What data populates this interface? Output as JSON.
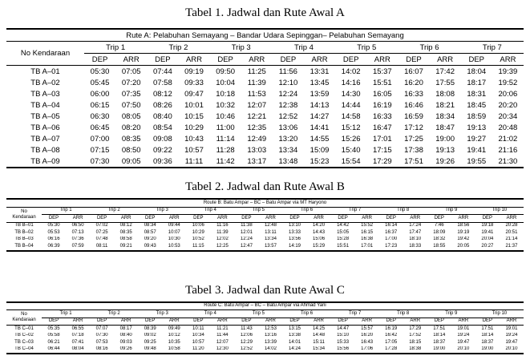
{
  "page": {
    "background_color": "#ffffff",
    "text_color": "#000000",
    "rule_color": "#000000"
  },
  "tables": [
    {
      "title": "Tabel 1. Jadwal dan Rute Awal A",
      "route_header": "Rute A: Pelabuhan Semayang – Bandar Udara Sepinggan– Pelabuhan Semayang",
      "vehicle_header_lines": [
        "No Kendaraan"
      ],
      "trips": [
        "Trip 1",
        "Trip 2",
        "Trip 3",
        "Trip 4",
        "Trip 5",
        "Trip 6",
        "Trip 7"
      ],
      "sub_headers": [
        "DEP",
        "ARR"
      ],
      "rows": [
        {
          "vehicle": "TB A–01",
          "times": [
            "05:30",
            "07:05",
            "07:44",
            "09:19",
            "09:50",
            "11:25",
            "11:56",
            "13:31",
            "14:02",
            "15:37",
            "16:07",
            "17:42",
            "18:04",
            "19:39"
          ]
        },
        {
          "vehicle": "TB A–02",
          "times": [
            "05:45",
            "07:20",
            "07:58",
            "09:33",
            "10:04",
            "11:39",
            "12:10",
            "13:45",
            "14:16",
            "15:51",
            "16:20",
            "17:55",
            "18:17",
            "19:52"
          ]
        },
        {
          "vehicle": "TB A–03",
          "times": [
            "06:00",
            "07:35",
            "08:12",
            "09:47",
            "10:18",
            "11:53",
            "12:24",
            "13:59",
            "14:30",
            "16:05",
            "16:33",
            "18:08",
            "18:31",
            "20:06"
          ]
        },
        {
          "vehicle": "TB A–04",
          "times": [
            "06:15",
            "07:50",
            "08:26",
            "10:01",
            "10:32",
            "12:07",
            "12:38",
            "14:13",
            "14:44",
            "16:19",
            "16:46",
            "18:21",
            "18:45",
            "20:20"
          ]
        },
        {
          "vehicle": "TB A–05",
          "times": [
            "06:30",
            "08:05",
            "08:40",
            "10:15",
            "10:46",
            "12:21",
            "12:52",
            "14:27",
            "14:58",
            "16:33",
            "16:59",
            "18:34",
            "18:59",
            "20:34"
          ]
        },
        {
          "vehicle": "TB A–06",
          "times": [
            "06:45",
            "08:20",
            "08:54",
            "10:29",
            "11:00",
            "12:35",
            "13:06",
            "14:41",
            "15:12",
            "16:47",
            "17:12",
            "18:47",
            "19:13",
            "20:48"
          ]
        },
        {
          "vehicle": "TB A–07",
          "times": [
            "07:00",
            "08:35",
            "09:08",
            "10:43",
            "11:14",
            "12:49",
            "13:20",
            "14:55",
            "15:26",
            "17:01",
            "17:25",
            "19:00",
            "19:27",
            "21:02"
          ]
        },
        {
          "vehicle": "TB A–08",
          "times": [
            "07:15",
            "08:50",
            "09:22",
            "10:57",
            "11:28",
            "13:03",
            "13:34",
            "15:09",
            "15:40",
            "17:15",
            "17:38",
            "19:13",
            "19:41",
            "21:16"
          ]
        },
        {
          "vehicle": "TB A–09",
          "times": [
            "07:30",
            "09:05",
            "09:36",
            "11:11",
            "11:42",
            "13:17",
            "13:48",
            "15:23",
            "15:54",
            "17:29",
            "17:51",
            "19:26",
            "19:55",
            "21:30"
          ]
        }
      ]
    },
    {
      "title": "Tabel 2. Jadwal dan Rute Awal B",
      "route_header": "Route B: Batu Ampar – BC – Batu Ampar via MT Haryono",
      "vehicle_header_lines": [
        "No",
        "Kendaraan"
      ],
      "trips": [
        "Trip 1",
        "Trip 2",
        "Trip 3",
        "Trip 4",
        "Trip 5",
        "Trip 6",
        "Trip 7",
        "Trip 8",
        "Trip 9",
        "Trip 10"
      ],
      "sub_headers": [
        "DEP",
        "ARR"
      ],
      "rows": [
        {
          "vehicle": "TB B–01",
          "times": [
            "05:30",
            "06:50",
            "07:02",
            "08:12",
            "08:34",
            "09:44",
            "10:06",
            "11:16",
            "11:38",
            "12:48",
            "13:10",
            "14:20",
            "14:42",
            "15:52",
            "16:14",
            "17:24",
            "7:46",
            "18:56",
            "19:18",
            "20:28"
          ]
        },
        {
          "vehicle": "TB B–02",
          "times": [
            "05:53",
            "07:13",
            "07:25",
            "08:35",
            "08:57",
            "10:07",
            "10:29",
            "11:39",
            "12:01",
            "13:11",
            "13:33",
            "14:43",
            "15:05",
            "16:15",
            "16:37",
            "17:47",
            "18:09",
            "19:19",
            "19:41",
            "20:51"
          ]
        },
        {
          "vehicle": "TB B–03",
          "times": [
            "06:16",
            "07:36",
            "07:48",
            "08:58",
            "09:20",
            "10:30",
            "10:52",
            "12:02",
            "12:24",
            "13:34",
            "13:56",
            "15:06",
            "15:28",
            "16:38",
            "17:00",
            "18:10",
            "18:32",
            "19:42",
            "20:04",
            "21:14"
          ]
        },
        {
          "vehicle": "TB B–04",
          "times": [
            "06:39",
            "07:59",
            "08:11",
            "09:21",
            "09:43",
            "10:53",
            "11:15",
            "12:25",
            "12:47",
            "13:57",
            "14:19",
            "15:29",
            "15:51",
            "17:01",
            "17:23",
            "18:33",
            "18:55",
            "20:05",
            "20:27",
            "21:37"
          ]
        }
      ]
    },
    {
      "title": "Tabel 3. Jadwal dan Rute Awal C",
      "route_header": "Route C: Batu Ampar – BC – Batu Ampar via Ahmad Yani",
      "vehicle_header_lines": [
        "No",
        "Kendaraan"
      ],
      "trips": [
        "Trip 1",
        "Trip 2",
        "Trip 3",
        "Trip 4",
        "Trip 5",
        "Trip 6",
        "Trip 7",
        "Trip 8",
        "Trip 9",
        "Trip 10"
      ],
      "sub_headers": [
        "DEP",
        "ARR"
      ],
      "rows": [
        {
          "vehicle": "TB C–01",
          "times": [
            "05:35",
            "06:55",
            "07:07",
            "08:17",
            "08:39",
            "09:49",
            "10:11",
            "11:21",
            "11:43",
            "12:53",
            "13:15",
            "14:25",
            "14:47",
            "15:57",
            "16:19",
            "17:29",
            "17:51",
            "19:01",
            "17:51",
            "19:01"
          ]
        },
        {
          "vehicle": "TB C–02",
          "times": [
            "05:58",
            "07:18",
            "07:30",
            "08:40",
            "09:02",
            "10:12",
            "10:34",
            "11:44",
            "12:06",
            "13:16",
            "13:38",
            "14:48",
            "15:10",
            "16:20",
            "16:42",
            "17:52",
            "18:14",
            "19:24",
            "18:14",
            "19:24"
          ]
        },
        {
          "vehicle": "TB C–03",
          "times": [
            "06:21",
            "07:41",
            "07:53",
            "09:03",
            "09:25",
            "10:35",
            "10:57",
            "12:07",
            "12:29",
            "13:39",
            "14:01",
            "15:11",
            "15:33",
            "16:43",
            "17:05",
            "18:15",
            "18:37",
            "19:47",
            "18:37",
            "19:47"
          ]
        },
        {
          "vehicle": "TB C–04",
          "times": [
            "06:44",
            "08:04",
            "08:16",
            "09:26",
            "09:48",
            "10:58",
            "11:20",
            "12:30",
            "12:52",
            "14:02",
            "14:24",
            "15:34",
            "15:56",
            "17:06",
            "17:28",
            "18:38",
            "19:00",
            "20:10",
            "19:00",
            "20:10"
          ]
        }
      ]
    }
  ]
}
